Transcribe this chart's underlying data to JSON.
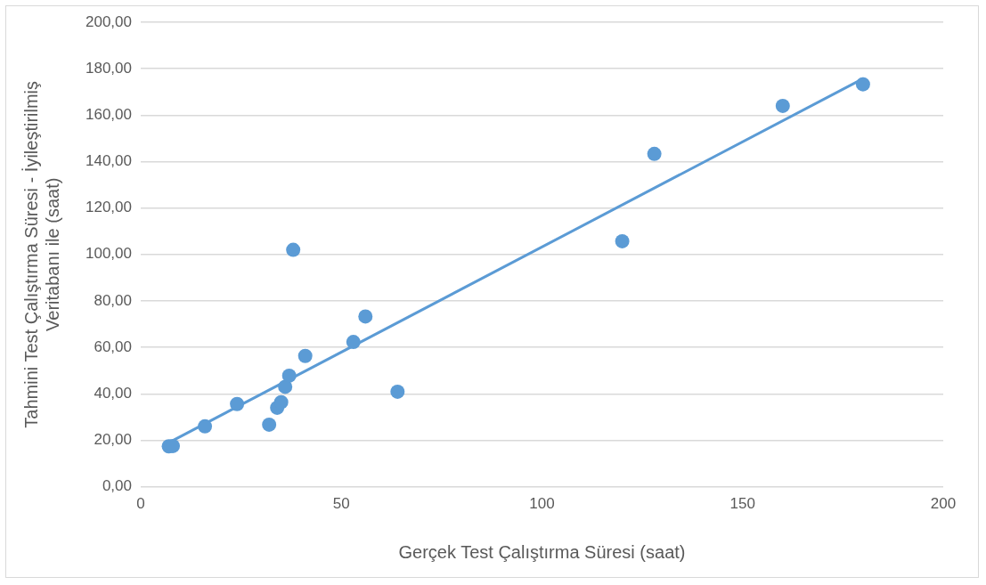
{
  "chart_data": {
    "type": "scatter",
    "xlabel": "Gerçek Test Çalıştırma Süresi (saat)",
    "ylabel": "Tahmini Test Çalıştırma Süresi - İyileştirilmiş Veritabanı ile (saat)",
    "xlim": [
      0,
      200
    ],
    "xticks": [
      0,
      50,
      100,
      150,
      200
    ],
    "ylim": [
      0,
      200
    ],
    "yticks": [
      {
        "value": 0,
        "label": "0,00"
      },
      {
        "value": 20,
        "label": "20,00"
      },
      {
        "value": 40,
        "label": "40,00"
      },
      {
        "value": 60,
        "label": "60,00"
      },
      {
        "value": 80,
        "label": "80,00"
      },
      {
        "value": 100,
        "label": "100,00"
      },
      {
        "value": 120,
        "label": "120,00"
      },
      {
        "value": 140,
        "label": "140,00"
      },
      {
        "value": 160,
        "label": "160,00"
      },
      {
        "value": 180,
        "label": "180,00"
      },
      {
        "value": 200,
        "label": "200,00"
      }
    ],
    "grid": "y",
    "legend": false,
    "marker": "circle",
    "series": [
      {
        "type": "scatter",
        "color": "#5b9bd5",
        "x": [
          7,
          8,
          16,
          24,
          32,
          34,
          35,
          36,
          37,
          38,
          41,
          53,
          56,
          64,
          120,
          128,
          160,
          180
        ],
        "values": [
          17.4,
          17.5,
          26,
          35.6,
          26.7,
          34,
          36.4,
          43,
          47.8,
          102,
          56.3,
          62.3,
          73.3,
          40.9,
          105.7,
          143.3,
          164,
          173.3
        ]
      },
      {
        "type": "line",
        "color": "#5b9bd5",
        "marker": "none",
        "x": [
          7,
          180
        ],
        "values": [
          19,
          175.7
        ]
      }
    ]
  }
}
